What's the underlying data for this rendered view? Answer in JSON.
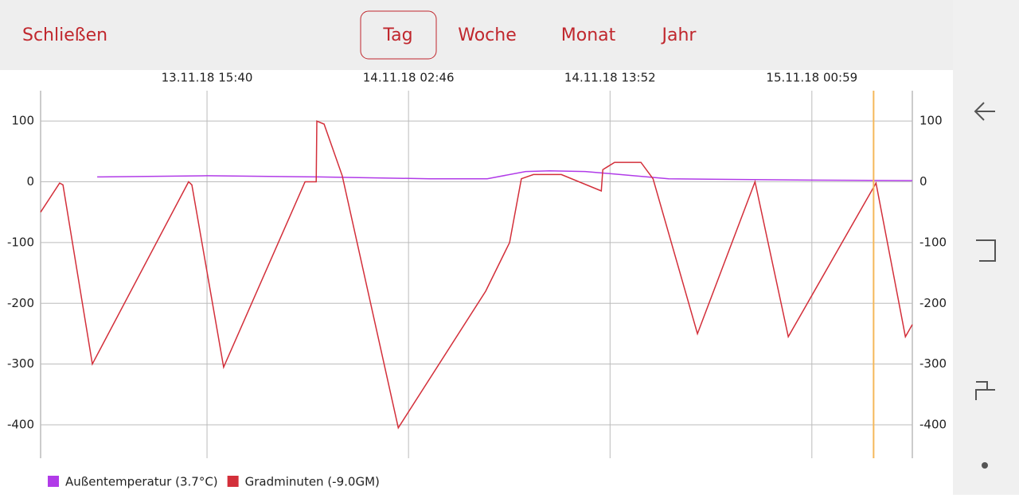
{
  "top_bar": {
    "close": "Schließen",
    "tabs": [
      "Tag",
      "Woche",
      "Monat",
      "Jahr"
    ],
    "selected_tab": 0
  },
  "chart_data": {
    "type": "line",
    "xlim": [
      "13.11.18 06:30",
      "15.11.18 06:31"
    ],
    "xticks": [
      "13.11.18 15:40",
      "14.11.18 02:46",
      "14.11.18 13:52",
      "15.11.18 00:59"
    ],
    "ylim": [
      -455,
      150
    ],
    "yticks": [
      -400,
      -300,
      -200,
      -100,
      0,
      100
    ],
    "grid": true,
    "cursor": "15.11.18 04:23",
    "cursor_color": "#f5b85a",
    "series": [
      {
        "name": "Außentemperatur (3.7°C)",
        "color": "#b13be8",
        "x": [
          "13.11.18 09:37",
          "13.11.18 15:40",
          "13.11.18 21:48",
          "14.11.18 03:57",
          "14.11.18 07:06",
          "14.11.18 09:13",
          "14.11.18 10:32",
          "14.11.18 12:30",
          "14.11.18 17:06",
          "15.11.18 00:07",
          "15.11.18 06:31"
        ],
        "values": [
          8,
          10,
          8,
          5,
          5,
          17,
          18,
          17,
          5,
          3,
          2
        ]
      },
      {
        "name": "Gradminuten (-9.0GM)",
        "color": "#d32f3a",
        "x": [
          "13.11.18 06:30",
          "13.11.18 07:33",
          "13.11.18 07:44",
          "13.11.18 09:21",
          "13.11.18 14:39",
          "13.11.18 14:50",
          "13.11.18 16:35",
          "13.11.18 21:04",
          "13.11.18 21:41",
          "13.11.18 21:43",
          "13.11.18 22:07",
          "13.11.18 23:07",
          "14.11.18 02:12",
          "14.11.18 07:01",
          "14.11.18 08:20",
          "14.11.18 08:59",
          "14.11.18 09:39",
          "14.11.18 11:11",
          "14.11.18 13:23",
          "14.11.18 13:28",
          "14.11.18 14:07",
          "14.11.18 15:34",
          "14.11.18 16:14",
          "14.11.18 18:41",
          "14.11.18 21:51",
          "14.11.18 23:41",
          "15.11.18 04:31",
          "15.11.18 06:08",
          "15.11.18 06:31"
        ],
        "values": [
          -50,
          -2,
          -5,
          -300,
          0,
          -5,
          -305,
          0,
          0,
          100,
          95,
          10,
          -405,
          -180,
          -100,
          5,
          12,
          12,
          -15,
          20,
          32,
          32,
          5,
          -250,
          0,
          -255,
          -2,
          -255,
          -235
        ]
      }
    ]
  }
}
